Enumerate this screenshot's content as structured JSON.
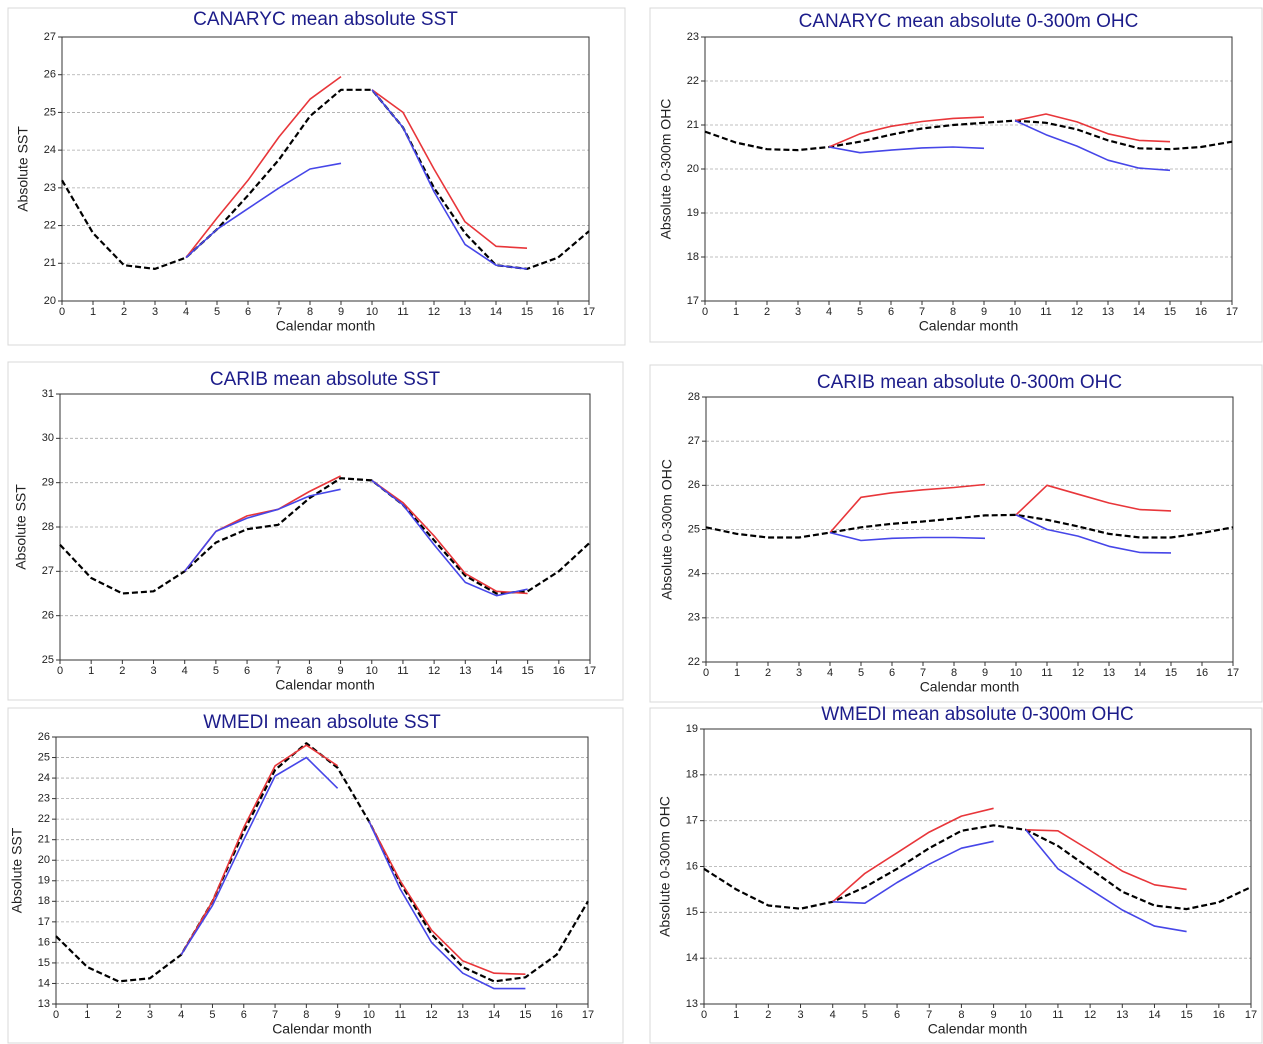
{
  "chart_data": [
    {
      "type": "line",
      "title": "CANARYC mean absolute SST",
      "xlabel": "Calendar month",
      "ylabel": "Absolute SST",
      "xlim": [
        0,
        17
      ],
      "xticks": [
        0,
        1,
        2,
        3,
        4,
        5,
        6,
        7,
        8,
        9,
        10,
        11,
        12,
        13,
        14,
        15,
        16,
        17
      ],
      "ylim": [
        20,
        27
      ],
      "yticks": [
        20,
        21,
        22,
        23,
        24,
        25,
        26,
        27
      ],
      "grid": true,
      "series": [
        {
          "color": "#000000",
          "dashed": true,
          "x": [
            0,
            1,
            2,
            3,
            4,
            5,
            6,
            7,
            8,
            9,
            10,
            11,
            12,
            13,
            14,
            15,
            16,
            17
          ],
          "values": [
            23.2,
            21.8,
            20.95,
            20.85,
            21.15,
            21.9,
            22.8,
            23.75,
            24.9,
            25.6,
            25.6,
            24.6,
            23.0,
            21.8,
            20.95,
            20.85,
            21.15,
            21.85
          ]
        },
        {
          "color": "#e8363a",
          "x": [
            4,
            5,
            6,
            7,
            8,
            9
          ],
          "values": [
            21.15,
            22.2,
            23.2,
            24.35,
            25.35,
            25.95
          ]
        },
        {
          "color": "#e8363a",
          "x": [
            10,
            11,
            12,
            13,
            14,
            15
          ],
          "values": [
            25.6,
            25.0,
            23.5,
            22.1,
            21.45,
            21.4
          ]
        },
        {
          "color": "#4646e8",
          "x": [
            4,
            5,
            6,
            7,
            8,
            9
          ],
          "values": [
            21.15,
            21.9,
            22.45,
            23.0,
            23.5,
            23.65
          ]
        },
        {
          "color": "#4646e8",
          "x": [
            10,
            11,
            12,
            13,
            14,
            15
          ],
          "values": [
            25.6,
            24.6,
            22.9,
            21.5,
            20.95,
            20.85
          ]
        }
      ]
    },
    {
      "type": "line",
      "title": "CANARYC mean absolute 0-300m OHC",
      "xlabel": "Calendar month",
      "ylabel": "Absolute 0-300m OHC",
      "xlim": [
        0,
        17
      ],
      "xticks": [
        0,
        1,
        2,
        3,
        4,
        5,
        6,
        7,
        8,
        9,
        10,
        11,
        12,
        13,
        14,
        15,
        16,
        17
      ],
      "ylim": [
        17,
        23
      ],
      "yticks": [
        17,
        18,
        19,
        20,
        21,
        22,
        23
      ],
      "grid": true,
      "series": [
        {
          "color": "#000000",
          "dashed": true,
          "x": [
            0,
            1,
            2,
            3,
            4,
            5,
            6,
            7,
            8,
            9,
            10,
            11,
            12,
            13,
            14,
            15,
            16,
            17
          ],
          "values": [
            20.85,
            20.6,
            20.45,
            20.43,
            20.5,
            20.62,
            20.78,
            20.92,
            21.0,
            21.05,
            21.1,
            21.05,
            20.9,
            20.65,
            20.47,
            20.45,
            20.5,
            20.62
          ]
        },
        {
          "color": "#e8363a",
          "x": [
            4,
            5,
            6,
            7,
            8,
            9
          ],
          "values": [
            20.5,
            20.8,
            20.97,
            21.08,
            21.15,
            21.18
          ]
        },
        {
          "color": "#e8363a",
          "x": [
            10,
            11,
            12,
            13,
            14,
            15
          ],
          "values": [
            21.1,
            21.25,
            21.07,
            20.8,
            20.65,
            20.62
          ]
        },
        {
          "color": "#4646e8",
          "x": [
            4,
            5,
            6,
            7,
            8,
            9
          ],
          "values": [
            20.5,
            20.37,
            20.43,
            20.48,
            20.5,
            20.47
          ]
        },
        {
          "color": "#4646e8",
          "x": [
            10,
            11,
            12,
            13,
            14,
            15
          ],
          "values": [
            21.1,
            20.78,
            20.52,
            20.2,
            20.02,
            19.97
          ]
        }
      ]
    },
    {
      "type": "line",
      "title": "CARIB mean absolute SST",
      "xlabel": "Calendar month",
      "ylabel": "Absolute SST",
      "xlim": [
        0,
        17
      ],
      "xticks": [
        0,
        1,
        2,
        3,
        4,
        5,
        6,
        7,
        8,
        9,
        10,
        11,
        12,
        13,
        14,
        15,
        16,
        17
      ],
      "ylim": [
        25,
        31
      ],
      "yticks": [
        25,
        26,
        27,
        28,
        29,
        30,
        31
      ],
      "grid": true,
      "series": [
        {
          "color": "#000000",
          "dashed": true,
          "x": [
            0,
            1,
            2,
            3,
            4,
            5,
            6,
            7,
            8,
            9,
            10,
            11,
            12,
            13,
            14,
            15,
            16,
            17
          ],
          "values": [
            27.6,
            26.85,
            26.5,
            26.55,
            27.0,
            27.65,
            27.95,
            28.05,
            28.65,
            29.1,
            29.05,
            28.5,
            27.7,
            26.9,
            26.5,
            26.55,
            27.0,
            27.65
          ]
        },
        {
          "color": "#e8363a",
          "x": [
            4,
            5,
            6,
            7,
            8,
            9
          ],
          "values": [
            27.0,
            27.9,
            28.25,
            28.4,
            28.8,
            29.15
          ]
        },
        {
          "color": "#e8363a",
          "x": [
            10,
            11,
            12,
            13,
            14,
            15
          ],
          "values": [
            29.05,
            28.55,
            27.8,
            26.95,
            26.55,
            26.5
          ]
        },
        {
          "color": "#4646e8",
          "x": [
            4,
            5,
            6,
            7,
            8,
            9
          ],
          "values": [
            27.0,
            27.9,
            28.2,
            28.4,
            28.7,
            28.85
          ]
        },
        {
          "color": "#4646e8",
          "x": [
            10,
            11,
            12,
            13,
            14,
            15
          ],
          "values": [
            29.05,
            28.5,
            27.6,
            26.75,
            26.45,
            26.6
          ]
        }
      ]
    },
    {
      "type": "line",
      "title": "CARIB mean absolute 0-300m OHC",
      "xlabel": "Calendar month",
      "ylabel": "Absolute 0-300m OHC",
      "xlim": [
        0,
        17
      ],
      "xticks": [
        0,
        1,
        2,
        3,
        4,
        5,
        6,
        7,
        8,
        9,
        10,
        11,
        12,
        13,
        14,
        15,
        16,
        17
      ],
      "ylim": [
        22,
        28
      ],
      "yticks": [
        22,
        23,
        24,
        25,
        26,
        27,
        28
      ],
      "grid": true,
      "series": [
        {
          "color": "#000000",
          "dashed": true,
          "x": [
            0,
            1,
            2,
            3,
            4,
            5,
            6,
            7,
            8,
            9,
            10,
            11,
            12,
            13,
            14,
            15,
            16,
            17
          ],
          "values": [
            25.05,
            24.9,
            24.82,
            24.82,
            24.93,
            25.05,
            25.13,
            25.18,
            25.25,
            25.32,
            25.33,
            25.22,
            25.07,
            24.9,
            24.82,
            24.82,
            24.92,
            25.05
          ]
        },
        {
          "color": "#e8363a",
          "x": [
            4,
            5,
            6,
            7,
            8,
            9
          ],
          "values": [
            24.93,
            25.73,
            25.83,
            25.9,
            25.95,
            26.02
          ]
        },
        {
          "color": "#e8363a",
          "x": [
            10,
            11,
            12,
            13,
            14,
            15
          ],
          "values": [
            25.33,
            26.0,
            25.8,
            25.6,
            25.45,
            25.42
          ]
        },
        {
          "color": "#4646e8",
          "x": [
            4,
            5,
            6,
            7,
            8,
            9
          ],
          "values": [
            24.93,
            24.75,
            24.8,
            24.82,
            24.82,
            24.8
          ]
        },
        {
          "color": "#4646e8",
          "x": [
            10,
            11,
            12,
            13,
            14,
            15
          ],
          "values": [
            25.33,
            25.0,
            24.85,
            24.62,
            24.48,
            24.47
          ]
        }
      ]
    },
    {
      "type": "line",
      "title": "WMEDI mean absolute SST",
      "xlabel": "Calendar month",
      "ylabel": "Absolute SST",
      "xlim": [
        0,
        17
      ],
      "xticks": [
        0,
        1,
        2,
        3,
        4,
        5,
        6,
        7,
        8,
        9,
        10,
        11,
        12,
        13,
        14,
        15,
        16,
        17
      ],
      "ylim": [
        13,
        26
      ],
      "yticks": [
        13,
        14,
        15,
        16,
        17,
        18,
        19,
        20,
        21,
        22,
        23,
        24,
        25,
        26
      ],
      "grid": true,
      "series": [
        {
          "color": "#000000",
          "dashed": true,
          "x": [
            0,
            1,
            2,
            3,
            4,
            5,
            6,
            7,
            8,
            9,
            10,
            11,
            12,
            13,
            14,
            15,
            16,
            17
          ],
          "values": [
            16.3,
            14.8,
            14.1,
            14.25,
            15.4,
            18.0,
            21.4,
            24.4,
            25.7,
            24.5,
            21.9,
            18.9,
            16.4,
            14.8,
            14.1,
            14.3,
            15.4,
            18.0
          ]
        },
        {
          "color": "#e8363a",
          "x": [
            4,
            5,
            6,
            7,
            8,
            9
          ],
          "values": [
            15.4,
            18.0,
            21.6,
            24.6,
            25.6,
            24.6
          ]
        },
        {
          "color": "#e8363a",
          "x": [
            10,
            11,
            12,
            13,
            14,
            15
          ],
          "values": [
            21.9,
            19.0,
            16.6,
            15.1,
            14.5,
            14.45
          ]
        },
        {
          "color": "#4646e8",
          "x": [
            4,
            5,
            6,
            7,
            8,
            9
          ],
          "values": [
            15.4,
            17.8,
            21.0,
            24.1,
            25.0,
            23.5
          ]
        },
        {
          "color": "#4646e8",
          "x": [
            10,
            11,
            12,
            13,
            14,
            15
          ],
          "values": [
            21.9,
            18.6,
            16.0,
            14.5,
            13.75,
            13.75
          ]
        }
      ]
    },
    {
      "type": "line",
      "title": "WMEDI mean absolute 0-300m OHC",
      "xlabel": "Calendar month",
      "ylabel": "Absolute 0-300m OHC",
      "xlim": [
        0,
        17
      ],
      "xticks": [
        0,
        1,
        2,
        3,
        4,
        5,
        6,
        7,
        8,
        9,
        10,
        11,
        12,
        13,
        14,
        15,
        16,
        17
      ],
      "ylim": [
        13,
        19
      ],
      "yticks": [
        13,
        14,
        15,
        16,
        17,
        18,
        19
      ],
      "grid": true,
      "series": [
        {
          "color": "#000000",
          "dashed": true,
          "x": [
            0,
            1,
            2,
            3,
            4,
            5,
            6,
            7,
            8,
            9,
            10,
            11,
            12,
            13,
            14,
            15,
            16,
            17
          ],
          "values": [
            15.95,
            15.5,
            15.15,
            15.08,
            15.23,
            15.55,
            15.95,
            16.4,
            16.78,
            16.9,
            16.8,
            16.45,
            15.95,
            15.45,
            15.15,
            15.07,
            15.22,
            15.55
          ]
        },
        {
          "color": "#e8363a",
          "x": [
            4,
            5,
            6,
            7,
            8,
            9
          ],
          "values": [
            15.23,
            15.85,
            16.3,
            16.75,
            17.1,
            17.27
          ]
        },
        {
          "color": "#e8363a",
          "x": [
            10,
            11,
            12,
            13,
            14,
            15
          ],
          "values": [
            16.8,
            16.78,
            16.35,
            15.9,
            15.6,
            15.5
          ]
        },
        {
          "color": "#4646e8",
          "x": [
            4,
            5,
            6,
            7,
            8,
            9
          ],
          "values": [
            15.23,
            15.2,
            15.65,
            16.05,
            16.4,
            16.55
          ]
        },
        {
          "color": "#4646e8",
          "x": [
            10,
            11,
            12,
            13,
            14,
            15
          ],
          "values": [
            16.8,
            15.95,
            15.5,
            15.05,
            14.7,
            14.58
          ]
        }
      ]
    }
  ]
}
